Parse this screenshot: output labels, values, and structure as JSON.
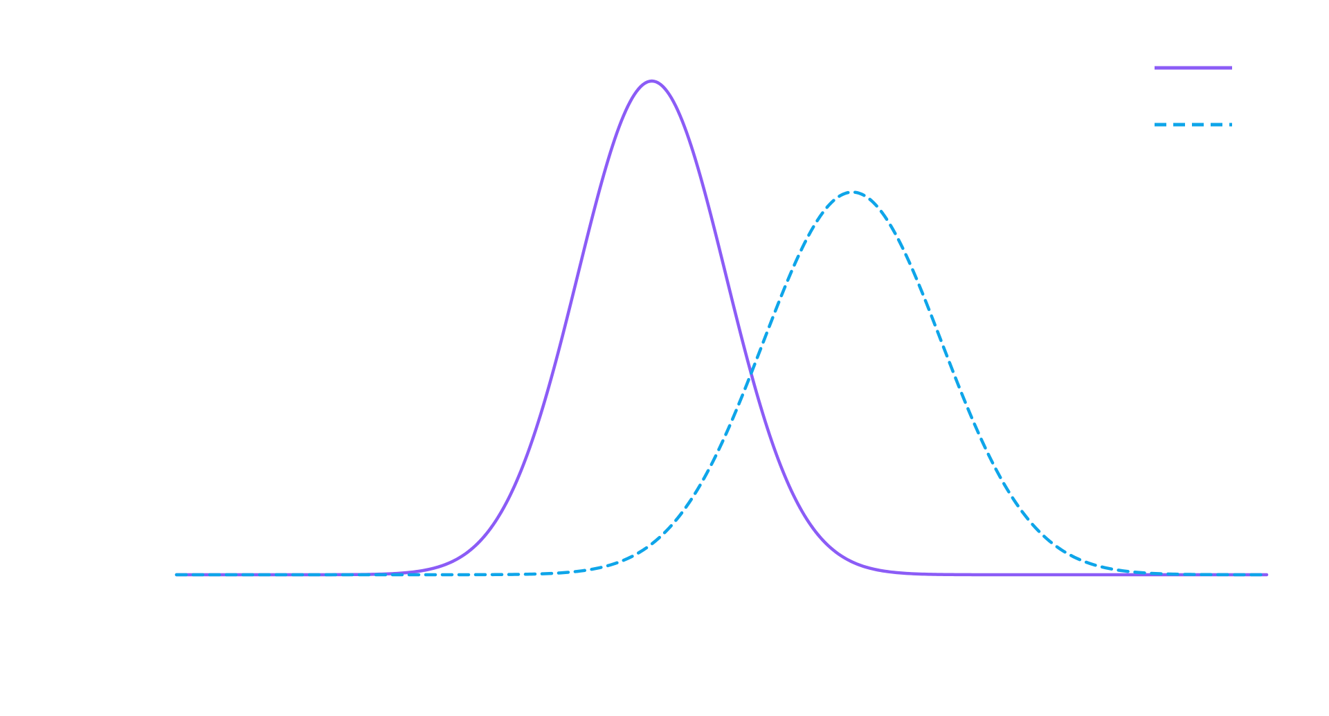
{
  "chart_data": {
    "type": "line",
    "title": "",
    "xlabel": "",
    "ylabel": "",
    "grid": false,
    "legend": {
      "position": "top-right",
      "show_labels": false
    },
    "xlim": [
      0,
      1
    ],
    "ylim": [
      0,
      1.08
    ],
    "series": [
      {
        "color": "#8B5CF6",
        "style": "solid",
        "kind": "gaussian",
        "mean": 0.436,
        "sd": 0.068,
        "peak": 1.0
      },
      {
        "color": "#0EA5E9",
        "style": "dashed",
        "kind": "gaussian",
        "mean": 0.62,
        "sd": 0.082,
        "peak": 0.775
      }
    ]
  }
}
